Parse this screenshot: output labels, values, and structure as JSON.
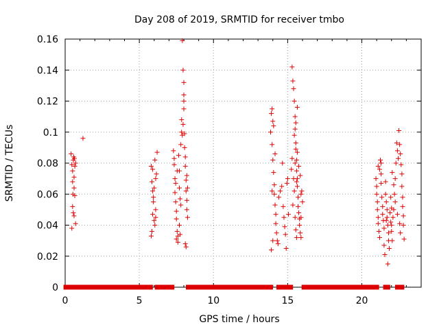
{
  "chart_data": {
    "type": "scatter",
    "title": "Day 208 of 2019, SRMTID for receiver tmbo",
    "xlabel": "GPS time / hours",
    "ylabel": "SRMTID / TECUs",
    "xlim": [
      0,
      24
    ],
    "ylim": [
      0,
      0.16
    ],
    "xticks": [
      0,
      5,
      10,
      15,
      20
    ],
    "xtick_labels": [
      "0",
      "5",
      "10",
      "15",
      "20"
    ],
    "yticks": [
      0,
      0.02,
      0.04,
      0.06,
      0.08,
      0.1,
      0.12,
      0.14,
      0.16
    ],
    "ytick_labels": [
      "0",
      "0.02",
      "0.04",
      "0.06",
      "0.08",
      "0.1",
      "0.12",
      "0.14",
      "0.16"
    ],
    "grid": true,
    "marker": "+",
    "marker_color": "#dd0000",
    "series": [
      {
        "name": "SRMTID",
        "points": [
          [
            0.4,
            0.086
          ],
          [
            0.45,
            0.079
          ],
          [
            0.5,
            0.075
          ],
          [
            0.55,
            0.082
          ],
          [
            0.6,
            0.071
          ],
          [
            0.6,
            0.064
          ],
          [
            0.65,
            0.059
          ],
          [
            0.5,
            0.052
          ],
          [
            0.55,
            0.048
          ],
          [
            0.6,
            0.046
          ],
          [
            0.7,
            0.041
          ],
          [
            0.45,
            0.038
          ],
          [
            0.5,
            0.068
          ],
          [
            0.65,
            0.078
          ],
          [
            0.7,
            0.08
          ],
          [
            0.58,
            0.084
          ],
          [
            0.52,
            0.06
          ],
          [
            0.62,
            0.083
          ],
          [
            1.2,
            0.096
          ],
          [
            5.8,
            0.078
          ],
          [
            5.85,
            0.068
          ],
          [
            5.9,
            0.062
          ],
          [
            5.95,
            0.055
          ],
          [
            5.9,
            0.047
          ],
          [
            6.0,
            0.043
          ],
          [
            6.05,
            0.04
          ],
          [
            5.85,
            0.036
          ],
          [
            5.8,
            0.033
          ],
          [
            6.1,
            0.05
          ],
          [
            6.15,
            0.073
          ],
          [
            6.2,
            0.087
          ],
          [
            6.05,
            0.082
          ],
          [
            5.95,
            0.058
          ],
          [
            6.1,
            0.045
          ],
          [
            6.0,
            0.064
          ],
          [
            5.9,
            0.076
          ],
          [
            6.1,
            0.07
          ],
          [
            7.3,
            0.088
          ],
          [
            7.35,
            0.079
          ],
          [
            7.4,
            0.07
          ],
          [
            7.4,
            0.061
          ],
          [
            7.45,
            0.055
          ],
          [
            7.5,
            0.049
          ],
          [
            7.5,
            0.044
          ],
          [
            7.55,
            0.036
          ],
          [
            7.6,
            0.033
          ],
          [
            7.6,
            0.029
          ],
          [
            7.65,
            0.085
          ],
          [
            7.7,
            0.075
          ],
          [
            7.7,
            0.064
          ],
          [
            7.75,
            0.057
          ],
          [
            7.8,
            0.053
          ],
          [
            7.8,
            0.092
          ],
          [
            7.85,
            0.1
          ],
          [
            7.85,
            0.108
          ],
          [
            7.9,
            0.098
          ],
          [
            7.9,
            0.159
          ],
          [
            7.95,
            0.14
          ],
          [
            8.0,
            0.132
          ],
          [
            8.0,
            0.124
          ],
          [
            8.0,
            0.115
          ],
          [
            8.05,
            0.099
          ],
          [
            8.05,
            0.09
          ],
          [
            8.1,
            0.084
          ],
          [
            8.1,
            0.078
          ],
          [
            8.15,
            0.069
          ],
          [
            8.15,
            0.062
          ],
          [
            8.2,
            0.056
          ],
          [
            8.2,
            0.05
          ],
          [
            8.25,
            0.045
          ],
          [
            8.1,
            0.028
          ],
          [
            8.15,
            0.026
          ],
          [
            7.95,
            0.105
          ],
          [
            8.0,
            0.12
          ],
          [
            7.45,
            0.067
          ],
          [
            7.55,
            0.075
          ],
          [
            7.35,
            0.083
          ],
          [
            7.7,
            0.04
          ],
          [
            7.75,
            0.034
          ],
          [
            7.5,
            0.031
          ],
          [
            8.2,
            0.072
          ],
          [
            8.25,
            0.064
          ],
          [
            13.85,
            0.1
          ],
          [
            13.9,
            0.112
          ],
          [
            13.95,
            0.115
          ],
          [
            14.0,
            0.107
          ],
          [
            13.95,
            0.092
          ],
          [
            14.0,
            0.082
          ],
          [
            14.05,
            0.074
          ],
          [
            14.1,
            0.066
          ],
          [
            14.1,
            0.06
          ],
          [
            14.15,
            0.053
          ],
          [
            14.2,
            0.047
          ],
          [
            14.2,
            0.041
          ],
          [
            14.25,
            0.035
          ],
          [
            14.3,
            0.03
          ],
          [
            14.35,
            0.028
          ],
          [
            13.9,
            0.024
          ],
          [
            14.0,
            0.03
          ],
          [
            14.4,
            0.058
          ],
          [
            14.5,
            0.062
          ],
          [
            14.6,
            0.065
          ],
          [
            14.65,
            0.08
          ],
          [
            14.7,
            0.052
          ],
          [
            14.75,
            0.045
          ],
          [
            14.8,
            0.039
          ],
          [
            14.85,
            0.034
          ],
          [
            14.9,
            0.025
          ],
          [
            14.95,
            0.067
          ],
          [
            15.0,
            0.07
          ],
          [
            15.05,
            0.047
          ],
          [
            14.05,
            0.104
          ],
          [
            14.15,
            0.086
          ],
          [
            13.95,
            0.062
          ],
          [
            15.3,
            0.142
          ],
          [
            15.35,
            0.133
          ],
          [
            15.4,
            0.128
          ],
          [
            15.45,
            0.12
          ],
          [
            15.5,
            0.11
          ],
          [
            15.5,
            0.102
          ],
          [
            15.55,
            0.093
          ],
          [
            15.55,
            0.089
          ],
          [
            15.6,
            0.082
          ],
          [
            15.6,
            0.075
          ],
          [
            15.65,
            0.07
          ],
          [
            15.65,
            0.065
          ],
          [
            15.7,
            0.058
          ],
          [
            15.7,
            0.052
          ],
          [
            15.75,
            0.048
          ],
          [
            15.8,
            0.044
          ],
          [
            15.8,
            0.04
          ],
          [
            15.85,
            0.035
          ],
          [
            15.9,
            0.032
          ],
          [
            15.9,
            0.045
          ],
          [
            15.95,
            0.062
          ],
          [
            16.0,
            0.055
          ],
          [
            15.4,
            0.07
          ],
          [
            15.45,
            0.062
          ],
          [
            15.35,
            0.053
          ],
          [
            15.5,
            0.045
          ],
          [
            15.55,
            0.037
          ],
          [
            15.6,
            0.032
          ],
          [
            15.65,
            0.087
          ],
          [
            15.75,
            0.078
          ],
          [
            15.85,
            0.072
          ],
          [
            15.9,
            0.06
          ],
          [
            15.5,
            0.08
          ],
          [
            15.6,
            0.068
          ],
          [
            15.3,
            0.083
          ],
          [
            15.25,
            0.076
          ],
          [
            15.45,
            0.098
          ],
          [
            15.55,
            0.106
          ],
          [
            15.65,
            0.116
          ],
          [
            20.95,
            0.07
          ],
          [
            21.0,
            0.065
          ],
          [
            21.0,
            0.06
          ],
          [
            21.05,
            0.055
          ],
          [
            21.05,
            0.05
          ],
          [
            21.1,
            0.045
          ],
          [
            21.1,
            0.041
          ],
          [
            21.15,
            0.036
          ],
          [
            21.2,
            0.032
          ],
          [
            21.2,
            0.076
          ],
          [
            21.25,
            0.082
          ],
          [
            21.3,
            0.08
          ],
          [
            21.3,
            0.067
          ],
          [
            21.35,
            0.058
          ],
          [
            21.4,
            0.052
          ],
          [
            21.4,
            0.047
          ],
          [
            21.45,
            0.043
          ],
          [
            21.5,
            0.038
          ],
          [
            21.5,
            0.027
          ],
          [
            21.55,
            0.021
          ],
          [
            21.6,
            0.06
          ],
          [
            21.65,
            0.055
          ],
          [
            21.7,
            0.05
          ],
          [
            21.7,
            0.045
          ],
          [
            21.75,
            0.04
          ],
          [
            21.8,
            0.035
          ],
          [
            21.8,
            0.03
          ],
          [
            21.85,
            0.025
          ],
          [
            21.9,
            0.048
          ],
          [
            21.95,
            0.042
          ],
          [
            22.0,
            0.04
          ],
          [
            22.0,
            0.036
          ],
          [
            22.05,
            0.03
          ],
          [
            22.1,
            0.045
          ],
          [
            22.15,
            0.05
          ],
          [
            22.2,
            0.06
          ],
          [
            22.25,
            0.07
          ],
          [
            22.3,
            0.08
          ],
          [
            22.35,
            0.093
          ],
          [
            22.4,
            0.088
          ],
          [
            22.45,
            0.083
          ],
          [
            22.5,
            0.101
          ],
          [
            22.55,
            0.092
          ],
          [
            22.6,
            0.086
          ],
          [
            22.65,
            0.079
          ],
          [
            22.7,
            0.073
          ],
          [
            22.7,
            0.065
          ],
          [
            22.75,
            0.058
          ],
          [
            22.75,
            0.052
          ],
          [
            22.8,
            0.046
          ],
          [
            22.8,
            0.04
          ],
          [
            22.6,
            0.035
          ],
          [
            22.85,
            0.031
          ],
          [
            21.75,
            0.015
          ],
          [
            21.3,
            0.073
          ],
          [
            21.1,
            0.078
          ],
          [
            21.95,
            0.058
          ],
          [
            22.15,
            0.066
          ],
          [
            22.05,
            0.074
          ],
          [
            22.25,
            0.055
          ],
          [
            22.4,
            0.047
          ],
          [
            22.55,
            0.041
          ],
          [
            21.6,
            0.068
          ],
          [
            21.65,
            0.043
          ],
          [
            22.0,
            0.051
          ]
        ]
      },
      {
        "name": "zero",
        "segments": [
          [
            0.05,
            0.4
          ],
          [
            0.7,
            5.75
          ],
          [
            6.2,
            7.2
          ],
          [
            8.3,
            13.85
          ],
          [
            14.4,
            14.9
          ],
          [
            15.0,
            15.2
          ],
          [
            16.1,
            21.0
          ],
          [
            21.6,
            21.75
          ],
          [
            22.4,
            22.7
          ]
        ],
        "value": 0
      }
    ]
  }
}
